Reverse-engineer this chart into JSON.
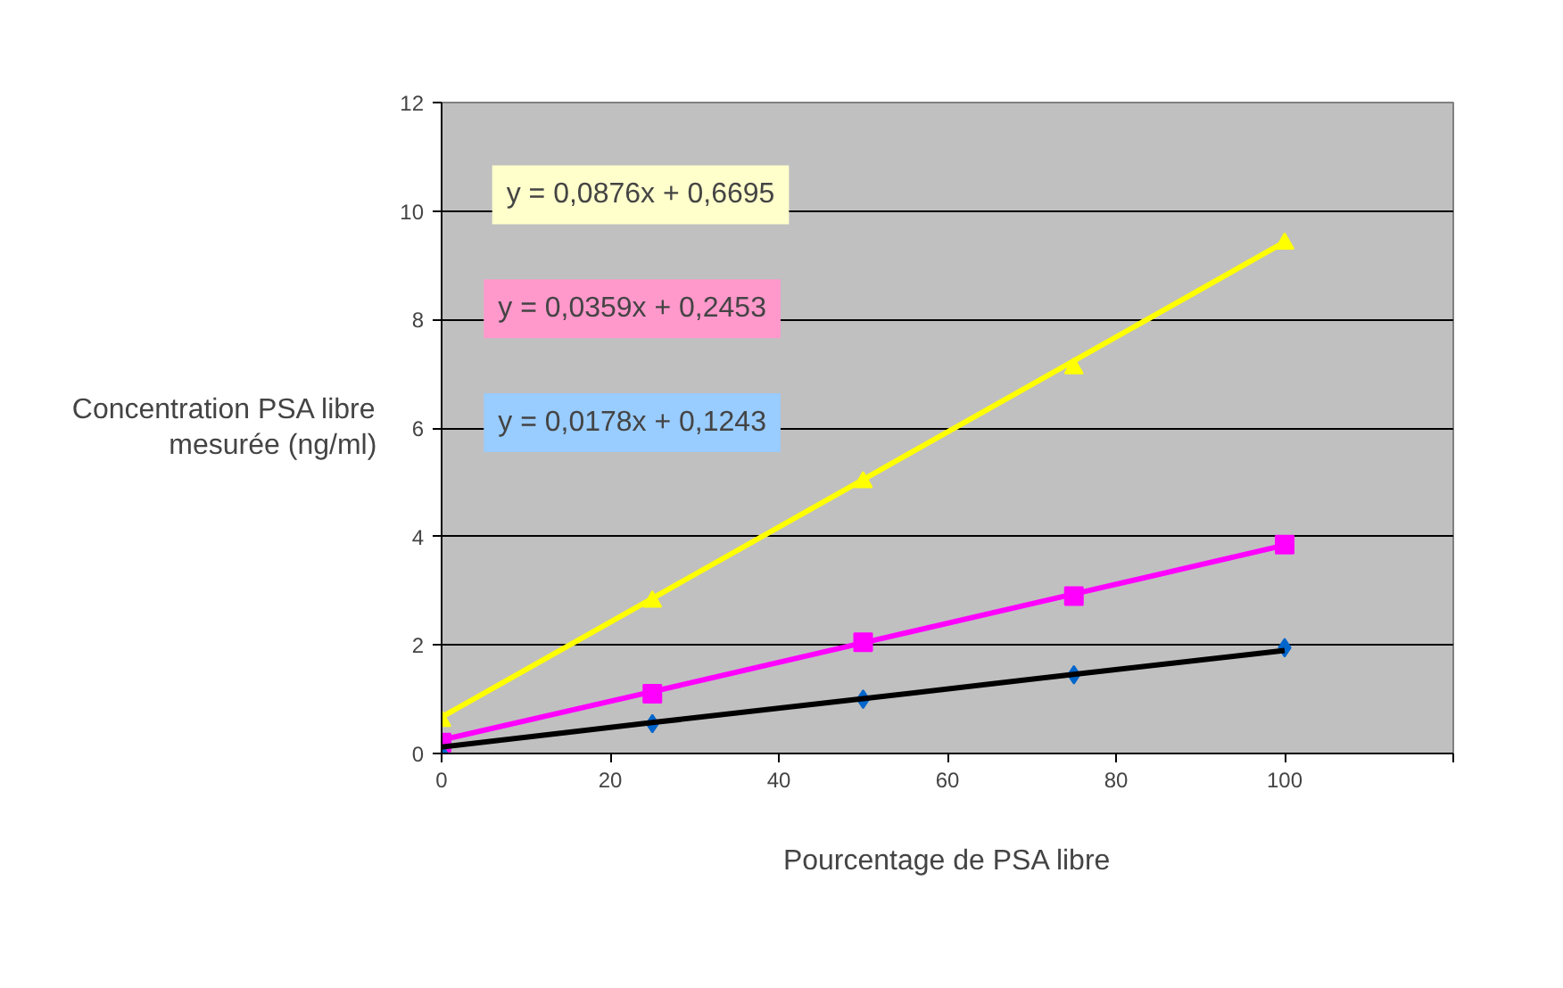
{
  "chart_data": {
    "type": "scatter",
    "xlabel": "Pourcentage de PSA libre",
    "ylabel": "Concentration PSA libre mesurée (ng/ml)",
    "x": [
      0,
      25,
      50,
      75,
      100
    ],
    "series": [
      {
        "type": "scatter",
        "color": "#ffff00",
        "marker": "triangle",
        "values": [
          0.6,
          2.8,
          5.0,
          7.1,
          9.4
        ]
      },
      {
        "type": "scatter",
        "color": "#ff00ff",
        "marker": "square",
        "values": [
          0.2,
          1.1,
          2.05,
          2.9,
          3.85
        ]
      },
      {
        "type": "scatter",
        "color": "#0066cc",
        "marker": "diamond",
        "values": [
          0.0,
          0.55,
          1.0,
          1.45,
          1.95
        ]
      },
      {
        "type": "line",
        "color": "#ffff00",
        "values": [
          0.67,
          2.86,
          5.05,
          7.24,
          9.43
        ]
      },
      {
        "type": "line",
        "color": "#ff00ff",
        "values": [
          0.25,
          1.14,
          2.04,
          2.94,
          3.84
        ]
      },
      {
        "type": "line",
        "color": "#000000",
        "values": [
          0.12,
          0.57,
          1.01,
          1.46,
          1.9
        ]
      }
    ],
    "annotations": [
      "y = 0,0876x + 0,6695",
      "y = 0,0359x + 0,2453",
      "y = 0,0178x + 0,1243"
    ],
    "xlim": [
      0,
      120
    ],
    "xticks": [
      0,
      20,
      40,
      60,
      80,
      100,
      {
        "value": 120,
        "label": null
      }
    ],
    "ylim": [
      0,
      12
    ],
    "yticks": [
      0,
      2,
      4,
      6,
      8,
      10,
      12
    ],
    "grid": "y"
  }
}
